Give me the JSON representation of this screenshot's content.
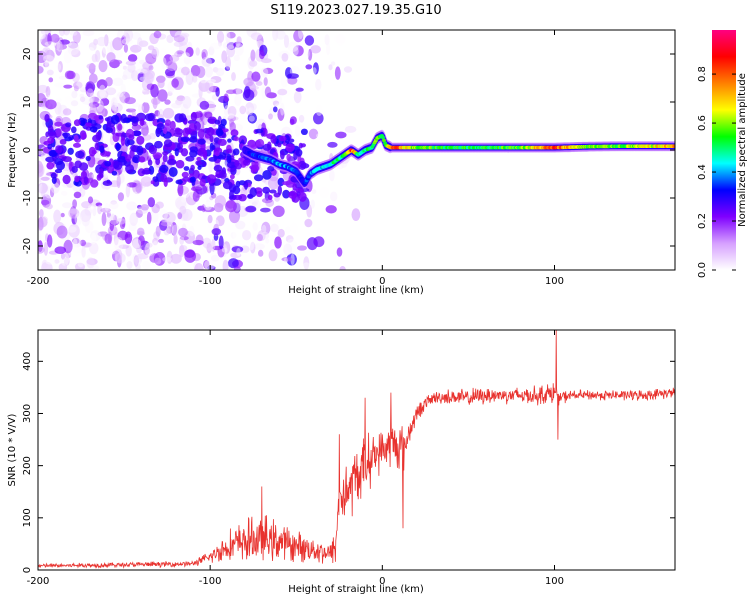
{
  "figure": {
    "title": "S119.2023.027.19.35.G10"
  },
  "chart_data": [
    {
      "type": "heatmap",
      "name": "spectrogram",
      "xlabel": "Height of straight line (km)",
      "ylabel": "Frequency (Hz)",
      "xlim": [
        -200,
        170
      ],
      "ylim": [
        -25,
        25
      ],
      "x_ticks": [
        -200,
        -100,
        0,
        100
      ],
      "y_ticks": [
        20,
        10,
        0,
        -10,
        -20
      ],
      "colorbar": {
        "label": "Normalized spectral amplitude",
        "range": [
          0.0,
          0.98
        ],
        "ticks": [
          0.0,
          0.2,
          0.4,
          0.6,
          0.8
        ],
        "tick_labels": [
          "0.0",
          "0.2",
          "0.4",
          "0.6",
          "0.8"
        ],
        "colormap": [
          "#ffffff",
          "#d6a0ff",
          "#7f00ff",
          "#0000ff",
          "#00ffff",
          "#00ff00",
          "#ffff00",
          "#ff8000",
          "#ff0000",
          "#ff0080"
        ]
      },
      "ridge": {
        "x": [
          -80,
          -75,
          -70,
          -65,
          -60,
          -55,
          -50,
          -45,
          -42,
          -38,
          -34,
          -30,
          -26,
          -22,
          -18,
          -14,
          -10,
          -6,
          -3,
          0,
          2,
          5,
          10,
          20,
          40,
          60,
          80,
          100,
          120,
          140,
          170
        ],
        "y": [
          0,
          -1,
          -1.5,
          -2,
          -3,
          -3.5,
          -4.5,
          -7,
          -5,
          -4,
          -3.5,
          -3,
          -2,
          -1,
          0,
          -1,
          0,
          0.5,
          2.5,
          3,
          1,
          0.5,
          0.5,
          0.5,
          0.5,
          0.5,
          0.5,
          0.5,
          0.7,
          0.8,
          0.8
        ],
        "amp": [
          0.3,
          0.35,
          0.35,
          0.4,
          0.4,
          0.4,
          0.35,
          0.35,
          0.4,
          0.45,
          0.45,
          0.5,
          0.5,
          0.55,
          0.9,
          0.5,
          0.5,
          0.55,
          0.6,
          0.5,
          0.6,
          0.8,
          0.8,
          0.6,
          0.55,
          0.55,
          0.6,
          0.85,
          0.6,
          0.6,
          0.75
        ]
      }
    },
    {
      "type": "line",
      "name": "snr",
      "xlabel": "Height of straight line (km)",
      "ylabel": "SNR (10 * V/V)",
      "xlim": [
        -200,
        170
      ],
      "ylim": [
        0,
        460
      ],
      "x_ticks": [
        -200,
        -100,
        0,
        100
      ],
      "y_ticks": [
        0,
        100,
        200,
        300,
        400
      ],
      "color": "#e8322e",
      "x": [
        -200,
        -150,
        -110,
        -100,
        -90,
        -80,
        -70,
        -60,
        -50,
        -40,
        -30,
        -27,
        -25,
        -20,
        -15,
        -10,
        -5,
        0,
        5,
        10,
        12,
        15,
        20,
        25,
        30,
        40,
        50,
        60,
        70,
        80,
        90,
        100,
        101,
        102,
        103,
        110,
        130,
        150,
        170
      ],
      "mean": [
        8,
        10,
        12,
        25,
        45,
        55,
        60,
        55,
        45,
        40,
        30,
        50,
        140,
        150,
        180,
        200,
        220,
        230,
        240,
        240,
        220,
        260,
        300,
        320,
        330,
        332,
        330,
        335,
        335,
        335,
        335,
        340,
        340,
        330,
        330,
        335,
        335,
        335,
        340
      ],
      "noise": [
        5,
        6,
        6,
        15,
        35,
        50,
        55,
        45,
        35,
        30,
        25,
        50,
        70,
        70,
        70,
        70,
        55,
        45,
        55,
        70,
        60,
        30,
        20,
        15,
        15,
        18,
        20,
        20,
        18,
        20,
        22,
        25,
        25,
        20,
        15,
        12,
        12,
        12,
        12
      ],
      "peaks": [
        [
          -70,
          160
        ],
        [
          -25,
          260
        ],
        [
          -10,
          330
        ],
        [
          5,
          340
        ],
        [
          12,
          80
        ],
        [
          101,
          460
        ],
        [
          102,
          250
        ]
      ]
    }
  ]
}
